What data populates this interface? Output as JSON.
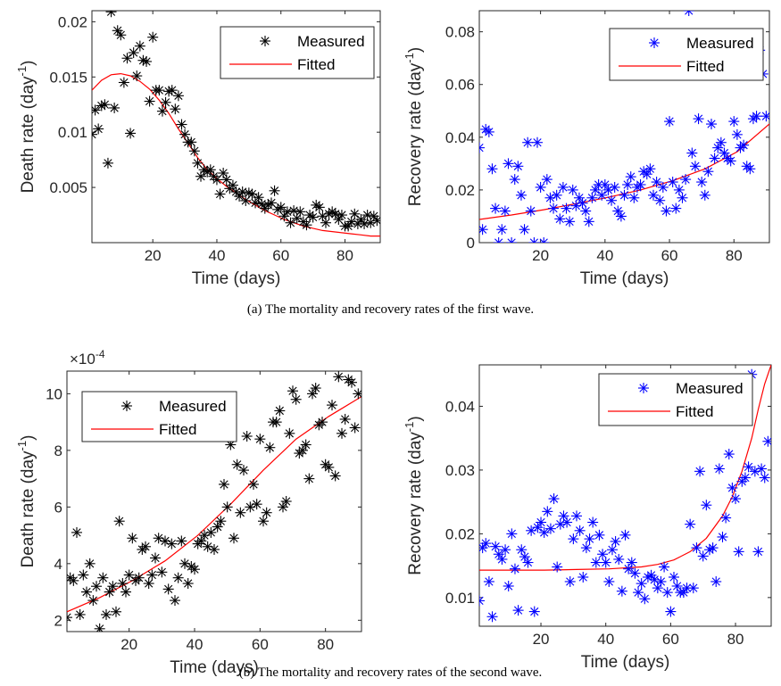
{
  "captions": {
    "a": "(a)  The mortality and recovery rates of the first wave.",
    "b": "(b)  The mortality and recovery rates of the second wave."
  },
  "colors": {
    "black_marker": "#000000",
    "blue_marker": "#0000ff",
    "fit_line": "#ff0000",
    "axis": "#262626"
  },
  "chart_data": [
    {
      "id": "wave1-death",
      "type": "scatter",
      "xlabel": "Time (days)",
      "ylabel": "Death rate (day",
      "ylabel_sup": "-1",
      "ylabel_close": ")",
      "xlim": [
        1,
        91
      ],
      "ylim": [
        0,
        0.021
      ],
      "xticks": [
        20,
        40,
        60,
        80
      ],
      "yticks": [
        0.005,
        0.01,
        0.015,
        0.02
      ],
      "ytick_labels": [
        "0.005",
        "0.01",
        "0.015",
        "0.02"
      ],
      "legend": {
        "placement": "top-right",
        "entries": [
          "Measured",
          "Fitted"
        ]
      },
      "series": [
        {
          "name": "Measured",
          "kind": "points",
          "marker": "asterisk",
          "color": "#000000",
          "x": [
            1,
            2,
            3,
            4,
            5,
            6,
            7,
            8,
            9,
            10,
            11,
            12,
            13,
            14,
            15,
            16,
            17,
            18,
            19,
            20,
            21,
            22,
            23,
            24,
            25,
            26,
            27,
            28,
            29,
            30,
            31,
            32,
            33,
            34,
            35,
            36,
            37,
            38,
            39,
            40,
            41,
            42,
            43,
            44,
            45,
            46,
            47,
            48,
            49,
            50,
            51,
            52,
            53,
            54,
            55,
            56,
            57,
            58,
            59,
            60,
            61,
            62,
            63,
            64,
            65,
            66,
            67,
            68,
            69,
            70,
            71,
            72,
            73,
            74,
            75,
            76,
            77,
            78,
            79,
            80,
            81,
            82,
            83,
            84,
            85,
            86,
            87,
            88,
            89,
            90
          ],
          "y": [
            0.0098,
            0.012,
            0.0103,
            0.0124,
            0.0125,
            0.0072,
            0.0209,
            0.0122,
            0.0192,
            0.0188,
            0.0145,
            0.0167,
            0.0099,
            0.0172,
            0.0151,
            0.0178,
            0.0165,
            0.0164,
            0.0128,
            0.0186,
            0.0138,
            0.0138,
            0.0119,
            0.0127,
            0.0137,
            0.0138,
            0.0121,
            0.0133,
            0.0107,
            0.0098,
            0.0091,
            0.0091,
            0.0083,
            0.0072,
            0.006,
            0.0066,
            0.0064,
            0.0066,
            0.006,
            0.0057,
            0.0044,
            0.0063,
            0.0057,
            0.0049,
            0.0052,
            0.0046,
            0.0042,
            0.0046,
            0.0038,
            0.0045,
            0.0044,
            0.0036,
            0.0041,
            0.0035,
            0.0031,
            0.0034,
            0.0036,
            0.0047,
            0.003,
            0.0032,
            0.0024,
            0.0028,
            0.0018,
            0.0029,
            0.0022,
            0.0028,
            0.0019,
            0.0016,
            0.0025,
            0.0023,
            0.0034,
            0.0032,
            0.0024,
            0.0018,
            0.0026,
            0.0028,
            0.0026,
            0.0021,
            0.0025,
            0.0015,
            0.0015,
            0.0019,
            0.0026,
            0.0017,
            0.0021,
            0.0017,
            0.0025,
            0.0018,
            0.0024,
            0.002
          ]
        },
        {
          "name": "Fitted",
          "kind": "line",
          "color": "#ff0000",
          "x": [
            1,
            4,
            7,
            10,
            13,
            16,
            19,
            22,
            25,
            28,
            31,
            34,
            37,
            40,
            43,
            46,
            49,
            52,
            55,
            58,
            61,
            64,
            67,
            70,
            73,
            76,
            79,
            82,
            85,
            88,
            91
          ],
          "y": [
            0.0138,
            0.0147,
            0.0152,
            0.0153,
            0.0151,
            0.0146,
            0.0139,
            0.0129,
            0.0117,
            0.0103,
            0.009,
            0.0077,
            0.0066,
            0.0058,
            0.0051,
            0.0045,
            0.0039,
            0.0034,
            0.0029,
            0.0025,
            0.0021,
            0.0018,
            0.0015,
            0.0013,
            0.0011,
            0.001,
            0.0009,
            0.0008,
            0.0007,
            0.0006,
            0.0006
          ]
        }
      ]
    },
    {
      "id": "wave1-recovery",
      "type": "scatter",
      "xlabel": "Time (days)",
      "ylabel": "Recovery rate (day",
      "ylabel_sup": "-1",
      "ylabel_close": ")",
      "xlim": [
        1,
        91
      ],
      "ylim": [
        0,
        0.088
      ],
      "xticks": [
        20,
        40,
        60,
        80
      ],
      "yticks": [
        0,
        0.02,
        0.04,
        0.06,
        0.08
      ],
      "ytick_labels": [
        "0",
        "0.02",
        "0.04",
        "0.06",
        "0.08"
      ],
      "legend": {
        "placement": "top-right",
        "entries": [
          "Measured",
          "Fitted"
        ]
      },
      "series": [
        {
          "name": "Measured",
          "kind": "points",
          "marker": "asterisk",
          "color": "#0000ff",
          "x": [
            1,
            2,
            3,
            4,
            5,
            6,
            7,
            8,
            9,
            10,
            11,
            12,
            13,
            14,
            15,
            16,
            17,
            18,
            19,
            20,
            21,
            22,
            23,
            24,
            25,
            26,
            27,
            28,
            29,
            30,
            31,
            32,
            33,
            34,
            35,
            36,
            37,
            38,
            39,
            40,
            41,
            42,
            43,
            44,
            45,
            46,
            47,
            48,
            49,
            50,
            51,
            52,
            53,
            54,
            55,
            56,
            57,
            58,
            59,
            60,
            61,
            62,
            63,
            64,
            65,
            66,
            67,
            68,
            69,
            70,
            71,
            72,
            73,
            74,
            75,
            76,
            77,
            78,
            79,
            80,
            81,
            82,
            83,
            84,
            85,
            86,
            87,
            88,
            89,
            90
          ],
          "y": [
            0.036,
            0.005,
            0.043,
            0.042,
            0.028,
            0.013,
            0.0,
            0.005,
            0.012,
            0.03,
            0.0,
            0.024,
            0.029,
            0.018,
            0.005,
            0.038,
            0.012,
            0.0,
            0.038,
            0.021,
            0.0,
            0.024,
            0.017,
            0.013,
            0.018,
            0.009,
            0.021,
            0.013,
            0.008,
            0.02,
            0.014,
            0.017,
            0.015,
            0.012,
            0.008,
            0.017,
            0.02,
            0.022,
            0.018,
            0.022,
            0.02,
            0.016,
            0.021,
            0.012,
            0.01,
            0.018,
            0.022,
            0.025,
            0.017,
            0.021,
            0.022,
            0.027,
            0.026,
            0.028,
            0.018,
            0.023,
            0.016,
            0.021,
            0.012,
            0.046,
            0.023,
            0.013,
            0.02,
            0.017,
            0.024,
            0.088,
            0.034,
            0.029,
            0.047,
            0.023,
            0.018,
            0.027,
            0.045,
            0.032,
            0.036,
            0.038,
            0.034,
            0.032,
            0.031,
            0.046,
            0.041,
            0.036,
            0.037,
            0.029,
            0.028,
            0.047,
            0.048,
            0.073,
            0.064,
            0.048
          ]
        },
        {
          "name": "Fitted",
          "kind": "line",
          "color": "#ff0000",
          "x": [
            1,
            11,
            21,
            31,
            41,
            51,
            61,
            71,
            81,
            91
          ],
          "y": [
            0.0088,
            0.0105,
            0.0125,
            0.0148,
            0.0172,
            0.02,
            0.0235,
            0.028,
            0.0345,
            0.045
          ]
        }
      ]
    },
    {
      "id": "wave2-death",
      "type": "scatter",
      "xlabel": "Time (days)",
      "ylabel": "Death rate (day",
      "ylabel_sup": "-1",
      "ylabel_close": ")",
      "exponent_label": "×10",
      "exponent_sup": "-4",
      "xlim": [
        1,
        91
      ],
      "ylim": [
        1.6,
        10.8
      ],
      "xticks": [
        20,
        40,
        60,
        80
      ],
      "yticks": [
        2,
        4,
        6,
        8,
        10
      ],
      "ytick_labels": [
        "2",
        "4",
        "6",
        "8",
        "10"
      ],
      "legend": {
        "placement": "top-left",
        "entries": [
          "Measured",
          "Fitted"
        ]
      },
      "series": [
        {
          "name": "Measured",
          "kind": "points",
          "marker": "asterisk",
          "color": "#000000",
          "x": [
            1,
            2,
            3,
            4,
            5,
            6,
            7,
            8,
            9,
            10,
            11,
            12,
            13,
            14,
            15,
            16,
            17,
            18,
            19,
            20,
            21,
            22,
            23,
            24,
            25,
            26,
            27,
            28,
            29,
            30,
            31,
            32,
            33,
            34,
            35,
            36,
            37,
            38,
            39,
            40,
            41,
            42,
            43,
            44,
            45,
            46,
            47,
            48,
            49,
            50,
            51,
            52,
            53,
            54,
            55,
            56,
            57,
            58,
            59,
            60,
            61,
            62,
            63,
            64,
            65,
            66,
            67,
            68,
            69,
            70,
            71,
            72,
            73,
            74,
            75,
            76,
            77,
            78,
            79,
            80,
            81,
            82,
            83,
            84,
            85,
            86,
            87,
            88,
            89,
            90
          ],
          "y": [
            2.1,
            3.5,
            3.4,
            5.1,
            2.2,
            3.6,
            3.0,
            4.0,
            2.7,
            3.2,
            1.7,
            3.5,
            2.2,
            3.0,
            3.2,
            2.3,
            5.5,
            3.3,
            3.0,
            3.6,
            4.9,
            3.4,
            3.5,
            4.5,
            4.6,
            3.3,
            3.6,
            4.2,
            4.9,
            3.7,
            4.8,
            3.1,
            4.7,
            2.7,
            3.5,
            4.8,
            4.0,
            3.3,
            3.9,
            3.8,
            4.7,
            4.8,
            5.0,
            4.6,
            5.1,
            4.5,
            5.3,
            5.5,
            6.8,
            6.0,
            8.2,
            4.9,
            7.5,
            5.8,
            7.3,
            8.5,
            6.0,
            6.8,
            6.1,
            8.4,
            5.5,
            5.8,
            8.1,
            9.0,
            9.0,
            9.4,
            6.0,
            6.2,
            8.6,
            10.1,
            9.8,
            7.9,
            8.0,
            8.2,
            7.0,
            10.0,
            10.2,
            8.9,
            9.0,
            7.5,
            7.4,
            9.6,
            7.1,
            10.6,
            8.6,
            9.1,
            10.5,
            10.4,
            8.8,
            10.0
          ]
        },
        {
          "name": "Fitted",
          "kind": "line",
          "color": "#ff0000",
          "x": [
            1,
            11,
            21,
            31,
            41,
            51,
            61,
            71,
            81,
            91
          ],
          "y": [
            2.3,
            2.8,
            3.4,
            4.1,
            5.0,
            6.1,
            7.3,
            8.4,
            9.2,
            9.9
          ]
        }
      ]
    },
    {
      "id": "wave2-recovery",
      "type": "scatter",
      "xlabel": "Time (days)",
      "ylabel": "Recovery rate (day",
      "ylabel_sup": "-1",
      "ylabel_close": ")",
      "xlim": [
        1,
        91
      ],
      "ylim": [
        0.0055,
        0.0465
      ],
      "xticks": [
        20,
        40,
        60,
        80
      ],
      "yticks": [
        0.01,
        0.02,
        0.03,
        0.04
      ],
      "ytick_labels": [
        "0.01",
        "0.02",
        "0.03",
        "0.04"
      ],
      "legend": {
        "placement": "top-right",
        "entries": [
          "Measured",
          "Fitted"
        ]
      },
      "series": [
        {
          "name": "Measured",
          "kind": "points",
          "marker": "asterisk",
          "color": "#0000ff",
          "x": [
            1,
            2,
            3,
            4,
            5,
            6,
            7,
            8,
            9,
            10,
            11,
            12,
            13,
            14,
            15,
            16,
            17,
            18,
            19,
            20,
            21,
            22,
            23,
            24,
            25,
            26,
            27,
            28,
            29,
            30,
            31,
            32,
            33,
            34,
            35,
            36,
            37,
            38,
            39,
            40,
            41,
            42,
            43,
            44,
            45,
            46,
            47,
            48,
            49,
            50,
            51,
            52,
            53,
            54,
            55,
            56,
            57,
            58,
            59,
            60,
            61,
            62,
            63,
            64,
            65,
            66,
            67,
            68,
            69,
            70,
            71,
            72,
            73,
            74,
            75,
            76,
            77,
            78,
            79,
            80,
            81,
            82,
            83,
            84,
            85,
            86,
            87,
            88,
            89,
            90
          ],
          "y": [
            0.0095,
            0.0178,
            0.0185,
            0.0125,
            0.007,
            0.018,
            0.0168,
            0.016,
            0.0175,
            0.0118,
            0.02,
            0.0145,
            0.008,
            0.0175,
            0.0164,
            0.0155,
            0.0205,
            0.0078,
            0.021,
            0.0218,
            0.0202,
            0.0235,
            0.0208,
            0.0255,
            0.0148,
            0.0215,
            0.0228,
            0.0218,
            0.0125,
            0.0192,
            0.0228,
            0.0205,
            0.0132,
            0.0178,
            0.0192,
            0.0218,
            0.0155,
            0.0198,
            0.0168,
            0.0155,
            0.0125,
            0.0175,
            0.0188,
            0.016,
            0.011,
            0.0198,
            0.0145,
            0.0155,
            0.0138,
            0.0108,
            0.0122,
            0.0098,
            0.0132,
            0.0135,
            0.0128,
            0.0115,
            0.0125,
            0.0148,
            0.0108,
            0.0078,
            0.0132,
            0.0118,
            0.0108,
            0.0108,
            0.0115,
            0.0215,
            0.0115,
            0.0178,
            0.0298,
            0.0165,
            0.0245,
            0.0175,
            0.0178,
            0.0125,
            0.0302,
            0.0195,
            0.0225,
            0.0325,
            0.0272,
            0.0255,
            0.0172,
            0.0282,
            0.0288,
            0.0305,
            0.045,
            0.0298,
            0.0172,
            0.0302,
            0.0288,
            0.0345
          ]
        },
        {
          "name": "Fitted",
          "kind": "line",
          "color": "#ff0000",
          "x": [
            1,
            11,
            21,
            31,
            41,
            51,
            56,
            61,
            66,
            71,
            76,
            79,
            82,
            85,
            87,
            89,
            91
          ],
          "y": [
            0.0143,
            0.0143,
            0.0143,
            0.0144,
            0.0145,
            0.0148,
            0.0152,
            0.0159,
            0.0172,
            0.0193,
            0.0228,
            0.0258,
            0.0298,
            0.035,
            0.0395,
            0.0435,
            0.0465
          ]
        }
      ]
    }
  ]
}
